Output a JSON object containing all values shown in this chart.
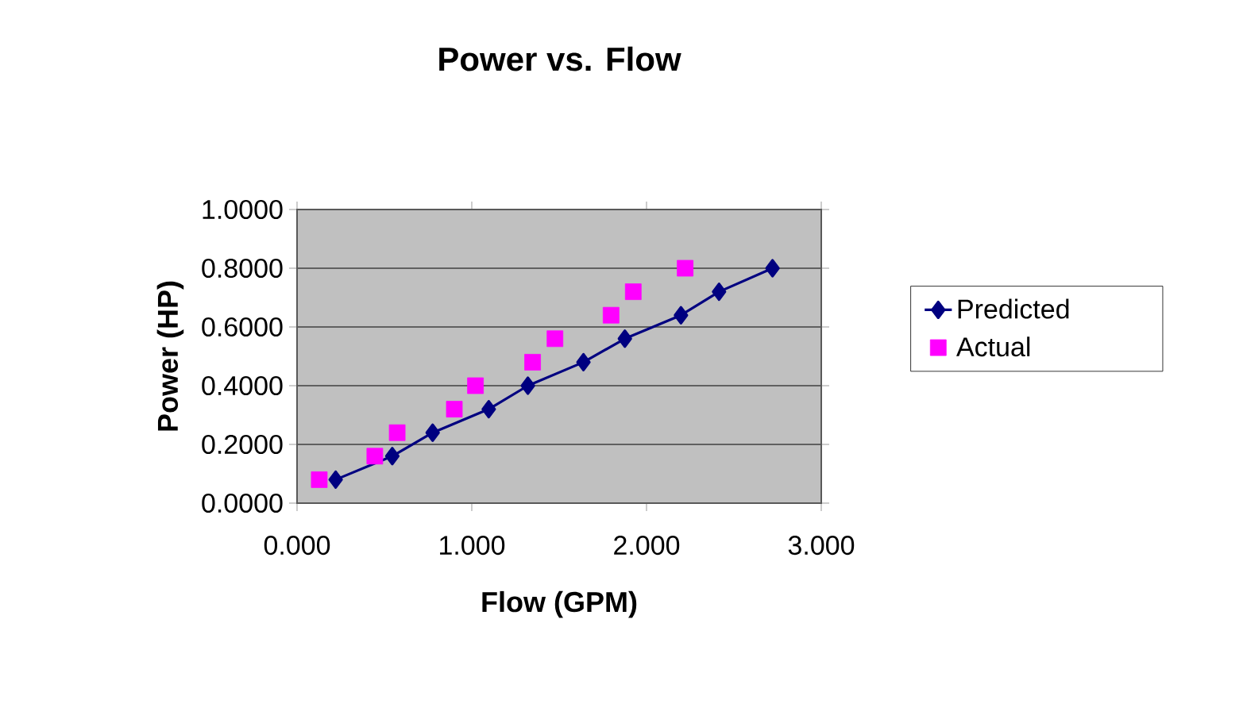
{
  "chart_data": {
    "type": "line",
    "title": "Power vs. Flow",
    "xlabel": "Flow (GPM)",
    "ylabel": "Power (HP)",
    "series": [
      {
        "name": "Predicted",
        "color": "#000080",
        "marker": "diamond",
        "line_style": "solid",
        "x": [
          0.221,
          0.545,
          0.776,
          1.097,
          1.321,
          1.639,
          1.876,
          2.197,
          2.415,
          2.721
        ],
        "values": [
          0.08,
          0.16,
          0.24,
          0.32,
          0.4,
          0.48,
          0.56,
          0.64,
          0.72,
          0.8
        ]
      },
      {
        "name": "Actual",
        "type": "scatter",
        "color": "#ff00ff",
        "marker": "square",
        "x": [
          0.127,
          0.445,
          0.573,
          0.9,
          1.021,
          1.348,
          1.476,
          1.797,
          1.924,
          2.221
        ],
        "values": [
          0.08,
          0.16,
          0.24,
          0.32,
          0.4,
          0.48,
          0.56,
          0.64,
          0.72,
          0.8
        ]
      }
    ],
    "xlim": [
      0,
      3
    ],
    "ylim": [
      0,
      1
    ],
    "xticks": [
      {
        "value": 0,
        "label": "0.000"
      },
      {
        "value": 1,
        "label": "1.000"
      },
      {
        "value": 2,
        "label": "2.000"
      },
      {
        "value": 3,
        "label": "3.000"
      }
    ],
    "yticks": [
      {
        "value": 0,
        "label": "0.0000"
      },
      {
        "value": 0.2,
        "label": "0.2000"
      },
      {
        "value": 0.4,
        "label": "0.4000"
      },
      {
        "value": 0.6,
        "label": "0.6000"
      },
      {
        "value": 0.8,
        "label": "0.8000"
      },
      {
        "value": 1,
        "label": "1.0000"
      }
    ],
    "grid": "y",
    "legend": "right"
  }
}
